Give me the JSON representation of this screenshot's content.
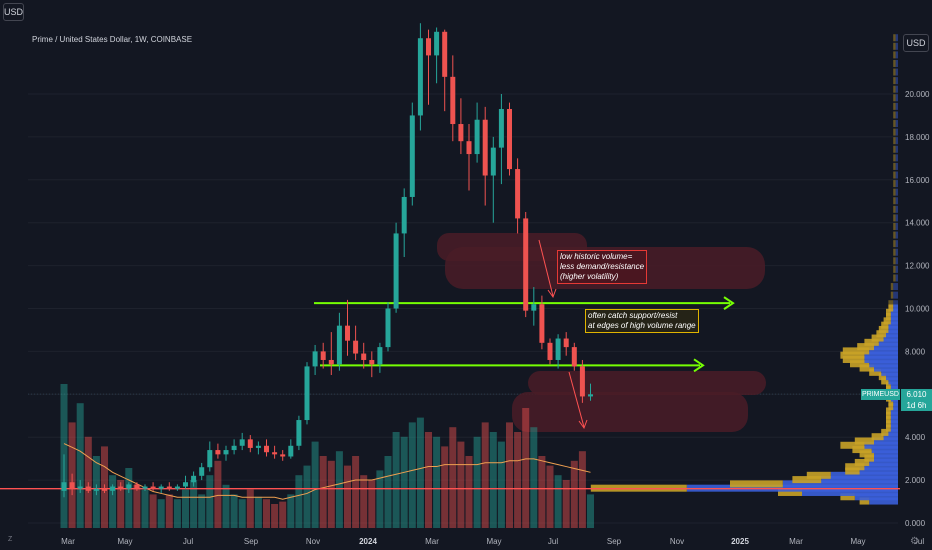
{
  "header": {
    "currency_button": "USD",
    "legend": "Prime / United States Dollar, 1W, COINBASE"
  },
  "axis": {
    "currency_button": "USD",
    "price_labels": [
      "20.000",
      "18.000",
      "16.000",
      "14.000",
      "12.000",
      "10.000",
      "8.000",
      "6.000",
      "4.000",
      "2.000",
      "0.000"
    ],
    "price_values": [
      20,
      18,
      16,
      14,
      12,
      10,
      8,
      6,
      4,
      2,
      0
    ],
    "ymin": -0.1,
    "ymax": 23.2
  },
  "timeline": {
    "labels": [
      "Mar",
      "May",
      "Jul",
      "Sep",
      "Nov",
      "2024",
      "Mar",
      "May",
      "Jul",
      "Sep",
      "Nov",
      "2025",
      "Mar",
      "May",
      "Jul"
    ],
    "bold": [
      "2024",
      "2025"
    ],
    "z_label": "Z",
    "settings_icon": "gear-icon"
  },
  "ticker": {
    "symbol": "PRIMEUSD",
    "price": "6.010",
    "countdown": "1d 6h",
    "color": "#26a69a"
  },
  "annotations": [
    {
      "lines": [
        "low historic volume=",
        "less demand/resistance",
        "(higher volatility)"
      ]
    },
    {
      "lines": [
        "often catch support/resist",
        "at edges of high volume range"
      ]
    }
  ],
  "levels": {
    "upper_green": 10.25,
    "lower_green": 7.35,
    "red_line": 1.6,
    "current": 6.01
  },
  "colors": {
    "up": "#26a69a",
    "down": "#ef5350",
    "accent_green": "#76ff03",
    "accent_red": "#ff5252",
    "vol_ma": "#f0a050",
    "zone_fill": "#4a1c27"
  },
  "chart_data": {
    "type": "candlestick",
    "title": "Prime / United States Dollar, 1W, COINBASE",
    "ylim": [
      0,
      23
    ],
    "interval": "1W",
    "candles": [
      {
        "o": 1.5,
        "h": 3.2,
        "l": 1.2,
        "c": 1.9
      },
      {
        "o": 1.9,
        "h": 2.3,
        "l": 1.3,
        "c": 1.6
      },
      {
        "o": 1.6,
        "h": 2.0,
        "l": 1.4,
        "c": 1.7
      },
      {
        "o": 1.7,
        "h": 1.9,
        "l": 1.4,
        "c": 1.5
      },
      {
        "o": 1.5,
        "h": 1.8,
        "l": 1.3,
        "c": 1.6
      },
      {
        "o": 1.6,
        "h": 1.8,
        "l": 1.4,
        "c": 1.5
      },
      {
        "o": 1.5,
        "h": 1.8,
        "l": 1.3,
        "c": 1.7
      },
      {
        "o": 1.7,
        "h": 1.9,
        "l": 1.5,
        "c": 1.6
      },
      {
        "o": 1.6,
        "h": 1.9,
        "l": 1.4,
        "c": 1.8
      },
      {
        "o": 1.8,
        "h": 1.9,
        "l": 1.5,
        "c": 1.6
      },
      {
        "o": 1.6,
        "h": 1.8,
        "l": 1.5,
        "c": 1.7
      },
      {
        "o": 1.7,
        "h": 1.9,
        "l": 1.5,
        "c": 1.6
      },
      {
        "o": 1.6,
        "h": 1.8,
        "l": 1.4,
        "c": 1.7
      },
      {
        "o": 1.7,
        "h": 1.9,
        "l": 1.5,
        "c": 1.6
      },
      {
        "o": 1.6,
        "h": 1.8,
        "l": 1.5,
        "c": 1.7
      },
      {
        "o": 1.7,
        "h": 2.2,
        "l": 1.6,
        "c": 1.9
      },
      {
        "o": 1.9,
        "h": 2.4,
        "l": 1.7,
        "c": 2.2
      },
      {
        "o": 2.2,
        "h": 2.8,
        "l": 2.0,
        "c": 2.6
      },
      {
        "o": 2.6,
        "h": 3.8,
        "l": 2.4,
        "c": 3.4
      },
      {
        "o": 3.4,
        "h": 3.7,
        "l": 3.0,
        "c": 3.2
      },
      {
        "o": 3.2,
        "h": 3.6,
        "l": 2.9,
        "c": 3.4
      },
      {
        "o": 3.4,
        "h": 3.9,
        "l": 3.2,
        "c": 3.6
      },
      {
        "o": 3.6,
        "h": 4.2,
        "l": 3.4,
        "c": 3.9
      },
      {
        "o": 3.9,
        "h": 4.1,
        "l": 3.3,
        "c": 3.5
      },
      {
        "o": 3.5,
        "h": 3.8,
        "l": 3.2,
        "c": 3.6
      },
      {
        "o": 3.6,
        "h": 3.9,
        "l": 3.1,
        "c": 3.3
      },
      {
        "o": 3.3,
        "h": 3.6,
        "l": 3.0,
        "c": 3.2
      },
      {
        "o": 3.2,
        "h": 3.4,
        "l": 2.9,
        "c": 3.1
      },
      {
        "o": 3.1,
        "h": 3.9,
        "l": 3.0,
        "c": 3.6
      },
      {
        "o": 3.6,
        "h": 5.0,
        "l": 3.4,
        "c": 4.8
      },
      {
        "o": 4.8,
        "h": 7.5,
        "l": 4.6,
        "c": 7.3
      },
      {
        "o": 7.3,
        "h": 8.3,
        "l": 6.9,
        "c": 8.0
      },
      {
        "o": 8.0,
        "h": 8.4,
        "l": 7.2,
        "c": 7.6
      },
      {
        "o": 7.6,
        "h": 8.9,
        "l": 6.9,
        "c": 7.4
      },
      {
        "o": 7.4,
        "h": 9.8,
        "l": 7.1,
        "c": 9.2
      },
      {
        "o": 9.2,
        "h": 10.4,
        "l": 7.8,
        "c": 8.5
      },
      {
        "o": 8.5,
        "h": 9.2,
        "l": 7.6,
        "c": 7.9
      },
      {
        "o": 7.9,
        "h": 8.4,
        "l": 7.2,
        "c": 7.6
      },
      {
        "o": 7.6,
        "h": 8.0,
        "l": 6.8,
        "c": 7.4
      },
      {
        "o": 7.4,
        "h": 8.4,
        "l": 7.0,
        "c": 8.2
      },
      {
        "o": 8.2,
        "h": 10.3,
        "l": 8.0,
        "c": 10.0
      },
      {
        "o": 10.0,
        "h": 14.0,
        "l": 9.8,
        "c": 13.5
      },
      {
        "o": 13.5,
        "h": 15.6,
        "l": 12.4,
        "c": 15.2
      },
      {
        "o": 15.2,
        "h": 19.6,
        "l": 14.8,
        "c": 19.0
      },
      {
        "o": 19.0,
        "h": 23.3,
        "l": 18.3,
        "c": 22.6
      },
      {
        "o": 22.6,
        "h": 23.0,
        "l": 19.5,
        "c": 21.8
      },
      {
        "o": 21.8,
        "h": 23.1,
        "l": 20.5,
        "c": 22.9
      },
      {
        "o": 22.9,
        "h": 23.0,
        "l": 19.2,
        "c": 20.8
      },
      {
        "o": 20.8,
        "h": 21.8,
        "l": 17.8,
        "c": 18.6
      },
      {
        "o": 18.6,
        "h": 19.8,
        "l": 17.2,
        "c": 17.8
      },
      {
        "o": 17.8,
        "h": 18.6,
        "l": 15.5,
        "c": 17.2
      },
      {
        "o": 17.2,
        "h": 19.6,
        "l": 16.8,
        "c": 18.8
      },
      {
        "o": 18.8,
        "h": 19.4,
        "l": 14.8,
        "c": 16.2
      },
      {
        "o": 16.2,
        "h": 18.0,
        "l": 14.0,
        "c": 17.5
      },
      {
        "o": 17.5,
        "h": 20.0,
        "l": 15.8,
        "c": 19.3
      },
      {
        "o": 19.3,
        "h": 19.6,
        "l": 16.2,
        "c": 16.5
      },
      {
        "o": 16.5,
        "h": 17.0,
        "l": 13.5,
        "c": 14.2
      },
      {
        "o": 14.2,
        "h": 14.5,
        "l": 9.6,
        "c": 9.9
      },
      {
        "o": 9.9,
        "h": 11.0,
        "l": 9.2,
        "c": 10.2
      },
      {
        "o": 10.2,
        "h": 10.6,
        "l": 8.1,
        "c": 8.4
      },
      {
        "o": 8.4,
        "h": 8.6,
        "l": 7.4,
        "c": 7.6
      },
      {
        "o": 7.6,
        "h": 8.8,
        "l": 7.2,
        "c": 8.6
      },
      {
        "o": 8.6,
        "h": 8.9,
        "l": 7.8,
        "c": 8.2
      },
      {
        "o": 8.2,
        "h": 8.4,
        "l": 7.1,
        "c": 7.3
      },
      {
        "o": 7.3,
        "h": 7.6,
        "l": 5.6,
        "c": 5.9
      },
      {
        "o": 5.9,
        "h": 6.5,
        "l": 5.7,
        "c": 6.0
      }
    ],
    "volume": [
      60,
      44,
      52,
      38,
      30,
      34,
      22,
      20,
      25,
      18,
      16,
      14,
      12,
      14,
      12,
      16,
      20,
      14,
      22,
      28,
      18,
      14,
      12,
      16,
      13,
      12,
      10,
      11,
      14,
      22,
      26,
      36,
      30,
      28,
      32,
      26,
      30,
      22,
      20,
      24,
      30,
      40,
      38,
      44,
      46,
      40,
      38,
      34,
      42,
      36,
      30,
      38,
      44,
      40,
      36,
      44,
      40,
      50,
      42,
      30,
      26,
      22,
      20,
      28,
      32,
      14
    ],
    "volume_ma": [
      44,
      42,
      40,
      37,
      34,
      32,
      29,
      27,
      25,
      23,
      21,
      19,
      18,
      17,
      16,
      16,
      16,
      16,
      16,
      17,
      17,
      17,
      16,
      16,
      16,
      16,
      16,
      15,
      16,
      17,
      18,
      20,
      21,
      22,
      23,
      24,
      25,
      25,
      25,
      26,
      27,
      28,
      29,
      30,
      31,
      32,
      32,
      33,
      33,
      33,
      33,
      33,
      34,
      34,
      34,
      35,
      35,
      36,
      36,
      35,
      34,
      33,
      32,
      31,
      30,
      29
    ],
    "volume_profile": [
      {
        "p": 1.0,
        "up": 4,
        "down": 12
      },
      {
        "p": 1.2,
        "up": 6,
        "down": 18
      },
      {
        "p": 1.4,
        "up": 10,
        "down": 40
      },
      {
        "p": 1.6,
        "up": 40,
        "down": 88
      },
      {
        "p": 1.8,
        "up": 22,
        "down": 48
      },
      {
        "p": 2.0,
        "up": 12,
        "down": 32
      },
      {
        "p": 2.2,
        "up": 10,
        "down": 28
      },
      {
        "p": 2.4,
        "up": 6,
        "down": 16
      },
      {
        "p": 2.6,
        "up": 8,
        "down": 14
      },
      {
        "p": 2.8,
        "up": 6,
        "down": 12
      },
      {
        "p": 3.0,
        "up": 4,
        "down": 10
      },
      {
        "p": 3.2,
        "up": 6,
        "down": 10
      },
      {
        "p": 3.4,
        "up": 8,
        "down": 11
      },
      {
        "p": 3.6,
        "up": 10,
        "down": 14
      },
      {
        "p": 3.8,
        "up": 8,
        "down": 10
      },
      {
        "p": 4.0,
        "up": 5,
        "down": 6
      },
      {
        "p": 4.2,
        "up": 3,
        "down": 4
      },
      {
        "p": 4.4,
        "up": 2,
        "down": 3
      },
      {
        "p": 4.6,
        "up": 2,
        "down": 3
      },
      {
        "p": 4.8,
        "up": 2,
        "down": 3
      },
      {
        "p": 5.0,
        "up": 2,
        "down": 3
      },
      {
        "p": 5.2,
        "up": 2,
        "down": 3
      },
      {
        "p": 5.4,
        "up": 2,
        "down": 2
      },
      {
        "p": 5.6,
        "up": 2,
        "down": 2
      },
      {
        "p": 5.8,
        "up": 2,
        "down": 3
      },
      {
        "p": 6.0,
        "up": 2,
        "down": 3
      },
      {
        "p": 6.2,
        "up": 2,
        "down": 3
      },
      {
        "p": 6.4,
        "up": 2,
        "down": 3
      },
      {
        "p": 6.6,
        "up": 3,
        "down": 4
      },
      {
        "p": 6.8,
        "up": 3,
        "down": 5
      },
      {
        "p": 7.0,
        "up": 5,
        "down": 7
      },
      {
        "p": 7.2,
        "up": 6,
        "down": 10
      },
      {
        "p": 7.4,
        "up": 8,
        "down": 12
      },
      {
        "p": 7.6,
        "up": 9,
        "down": 14
      },
      {
        "p": 7.8,
        "up": 10,
        "down": 14
      },
      {
        "p": 8.0,
        "up": 11,
        "down": 12
      },
      {
        "p": 8.2,
        "up": 7,
        "down": 10
      },
      {
        "p": 8.4,
        "up": 6,
        "down": 8
      },
      {
        "p": 8.6,
        "up": 5,
        "down": 6
      },
      {
        "p": 8.8,
        "up": 4,
        "down": 5
      },
      {
        "p": 9.0,
        "up": 4,
        "down": 4
      },
      {
        "p": 9.2,
        "up": 3,
        "down": 4
      },
      {
        "p": 9.4,
        "up": 3,
        "down": 3
      },
      {
        "p": 9.6,
        "up": 2,
        "down": 3
      },
      {
        "p": 9.8,
        "up": 2,
        "down": 3
      },
      {
        "p": 10.0,
        "up": 2,
        "down": 2
      },
      {
        "p": 10.2,
        "up": 2,
        "down": 2
      },
      {
        "p": 10.6,
        "up": 1,
        "down": 2
      },
      {
        "p": 11.0,
        "up": 1,
        "down": 2
      },
      {
        "p": 11.4,
        "up": 1,
        "down": 1
      },
      {
        "p": 11.8,
        "up": 1,
        "down": 1
      },
      {
        "p": 12.2,
        "up": 1,
        "down": 1
      },
      {
        "p": 12.6,
        "up": 1,
        "down": 1
      },
      {
        "p": 13.0,
        "up": 1,
        "down": 1
      },
      {
        "p": 13.4,
        "up": 1,
        "down": 1
      },
      {
        "p": 13.8,
        "up": 1,
        "down": 1
      },
      {
        "p": 14.2,
        "up": 1,
        "down": 1
      },
      {
        "p": 14.6,
        "up": 1,
        "down": 1
      },
      {
        "p": 15.0,
        "up": 1,
        "down": 1
      },
      {
        "p": 15.4,
        "up": 1,
        "down": 1
      },
      {
        "p": 15.8,
        "up": 1,
        "down": 1
      },
      {
        "p": 16.2,
        "up": 1,
        "down": 1
      },
      {
        "p": 16.6,
        "up": 1,
        "down": 1
      },
      {
        "p": 17.0,
        "up": 1,
        "down": 1
      },
      {
        "p": 17.4,
        "up": 1,
        "down": 1
      },
      {
        "p": 17.8,
        "up": 1,
        "down": 1
      },
      {
        "p": 18.2,
        "up": 1,
        "down": 1
      },
      {
        "p": 18.6,
        "up": 1,
        "down": 1
      },
      {
        "p": 19.0,
        "up": 1,
        "down": 1
      },
      {
        "p": 19.4,
        "up": 1,
        "down": 1
      },
      {
        "p": 19.8,
        "up": 1,
        "down": 1
      },
      {
        "p": 20.2,
        "up": 1,
        "down": 1
      },
      {
        "p": 20.6,
        "up": 1,
        "down": 1
      },
      {
        "p": 21.0,
        "up": 1,
        "down": 1
      },
      {
        "p": 21.4,
        "up": 1,
        "down": 1
      },
      {
        "p": 21.8,
        "up": 1,
        "down": 1
      },
      {
        "p": 22.2,
        "up": 1,
        "down": 1
      },
      {
        "p": 22.6,
        "up": 1,
        "down": 1
      }
    ]
  }
}
